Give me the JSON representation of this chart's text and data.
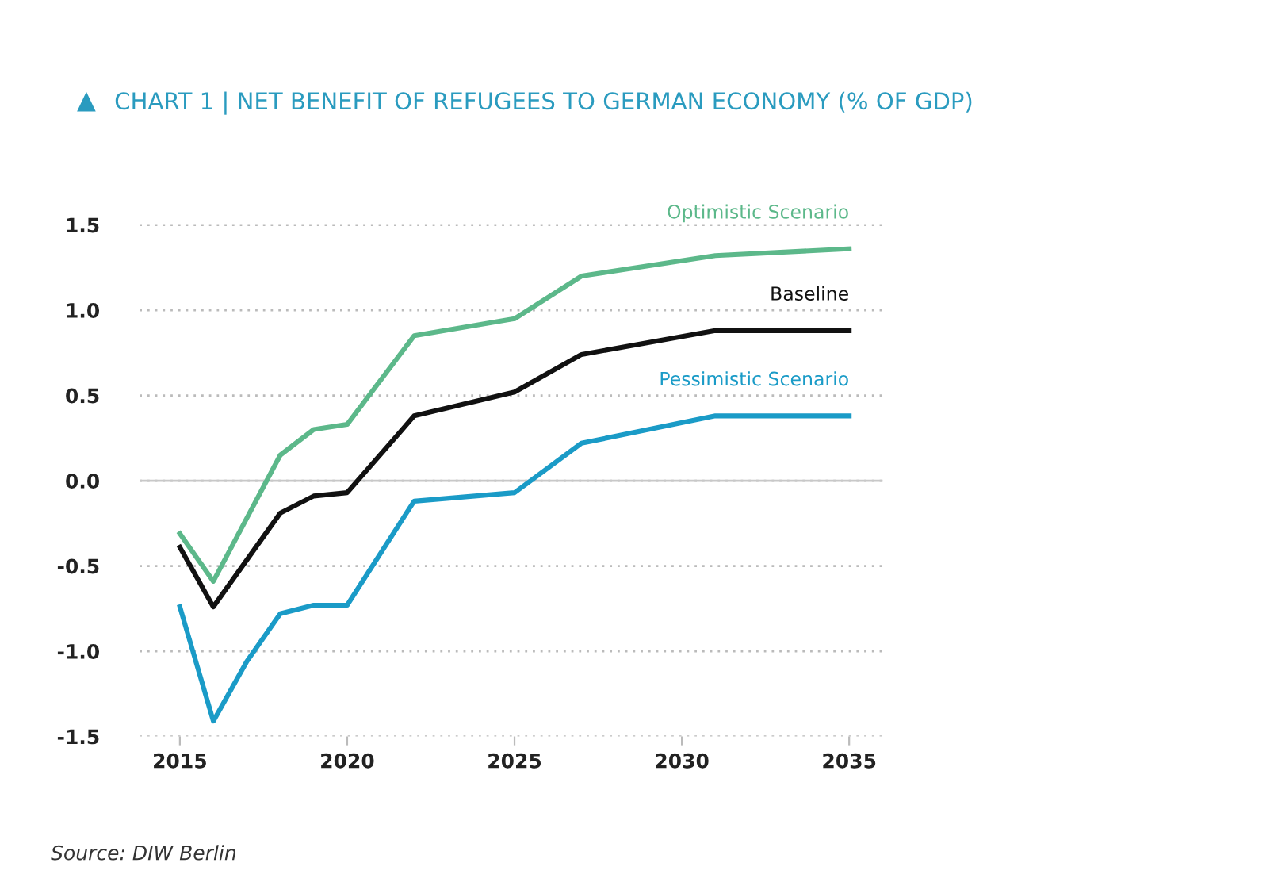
{
  "chart_data": {
    "type": "line",
    "title": "CHART 1 | NET BENEFIT OF REFUGEES TO GERMAN ECONOMY (% OF GDP)",
    "x": [
      2015,
      2016,
      2018,
      2019,
      2020,
      2022,
      2025,
      2027,
      2031,
      2035
    ],
    "series": [
      {
        "name": "Optimistic Scenario",
        "color": "#5cb88a",
        "values": [
          -0.31,
          -0.59,
          0.15,
          0.3,
          0.33,
          0.85,
          0.95,
          1.2,
          1.32,
          1.36
        ]
      },
      {
        "name": "Baseline",
        "color": "#111111",
        "values": [
          -0.39,
          -0.74,
          -0.19,
          -0.09,
          -0.07,
          0.38,
          0.52,
          0.74,
          0.88,
          0.88
        ]
      },
      {
        "name": "Pessimistic Scenario",
        "color": "#1a9bc7",
        "x": [
          2015,
          2016,
          2017,
          2018,
          2019,
          2020,
          2022,
          2025,
          2027,
          2031,
          2035
        ],
        "values": [
          -0.74,
          -1.41,
          -1.06,
          -0.78,
          -0.73,
          -0.73,
          -0.12,
          -0.07,
          0.22,
          0.38,
          0.38
        ]
      }
    ],
    "xlim": [
      2013.8,
      2036
    ],
    "xticks": [
      2015,
      2020,
      2025,
      2030,
      2035
    ],
    "ylim": [
      -1.5,
      1.5
    ],
    "yticks": [
      {
        "value": -1.5,
        "label": "-1.5"
      },
      {
        "value": -1.0,
        "label": "-1.0"
      },
      {
        "value": -0.5,
        "label": "-0.5"
      },
      {
        "value": 0.0,
        "label": "0.0"
      },
      {
        "value": 0.5,
        "label": "0.5"
      },
      {
        "value": 1.0,
        "label": "1.0"
      },
      {
        "value": 1.5,
        "label": "1.5"
      }
    ],
    "grid": "y",
    "legend": false,
    "marker": "none",
    "line_style": "solid",
    "ref_lines": [
      {
        "axis": "y",
        "value": 0,
        "color": "#c8c8c8",
        "line_style": "solid"
      }
    ],
    "annotations": [
      "Source: DIW Berlin"
    ]
  }
}
